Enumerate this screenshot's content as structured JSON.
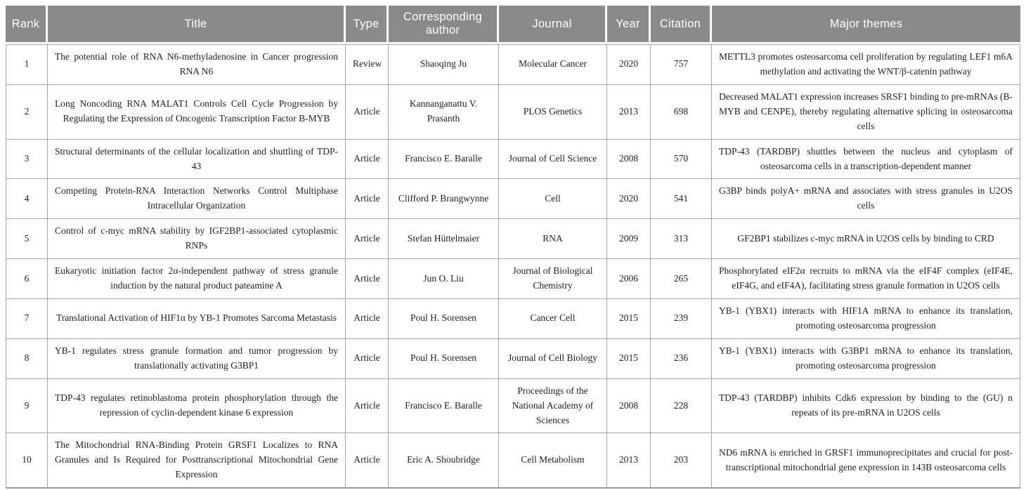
{
  "table": {
    "columns": [
      {
        "key": "rank",
        "label": "Rank"
      },
      {
        "key": "title",
        "label": "Title"
      },
      {
        "key": "type",
        "label": "Type"
      },
      {
        "key": "author",
        "label": "Corresponding author"
      },
      {
        "key": "journal",
        "label": "Journal"
      },
      {
        "key": "year",
        "label": "Year"
      },
      {
        "key": "citation",
        "label": "Citation"
      },
      {
        "key": "themes",
        "label": "Major themes"
      }
    ],
    "rows": [
      {
        "rank": "1",
        "title": "The potential role of RNA N6-methyladenosine in Cancer progression RNA N6",
        "type": "Review",
        "author": "Shaoqing Ju",
        "journal": "Molecular Cancer",
        "year": "2020",
        "citation": "757",
        "themes": "METTL3 promotes osteosarcoma cell proliferation by regulating LEF1 m6A methylation and activating the WNT/β-catenin pathway"
      },
      {
        "rank": "2",
        "title": "Long Noncoding RNA MALAT1 Controls Cell Cycle Progression by Regulating the Expression of Oncogenic Transcription Factor B-MYB",
        "type": "Article",
        "author": "Kannanganattu V. Prasanth",
        "journal": "PLOS Genetics",
        "year": "2013",
        "citation": "698",
        "themes": "Decreased MALAT1 expression increases SRSF1 binding to pre-mRNAs (B-MYB and CENPE), thereby regulating alternative splicing in osteosarcoma cells"
      },
      {
        "rank": "3",
        "title": "Structural determinants of the cellular localization and shuttling of TDP-43",
        "type": "Article",
        "author": "Francisco E. Baralle",
        "journal": "Journal of Cell Science",
        "year": "2008",
        "citation": "570",
        "themes": "TDP-43 (TARDBP) shuttles between the nucleus and cytoplasm of osteosarcoma cells in a transcription-dependent manner"
      },
      {
        "rank": "4",
        "title": "Competing Protein-RNA Interaction Networks Control Multiphase Intracellular Organization",
        "type": "Article",
        "author": "Clifford P. Brangwynne",
        "journal": "Cell",
        "year": "2020",
        "citation": "541",
        "themes": "G3BP binds polyA+ mRNA and associates with stress granules in U2OS cells"
      },
      {
        "rank": "5",
        "title": "Control of c-myc mRNA stability by IGF2BP1-associated cytoplasmic RNPs",
        "type": "Article",
        "author": "Stefan Hüttelmaier",
        "journal": "RNA",
        "year": "2009",
        "citation": "313",
        "themes": "GF2BP1 stabilizes c-myc mRNA in U2OS cells by binding to CRD"
      },
      {
        "rank": "6",
        "title": "Eukaryotic initiation factor 2α-independent pathway of stress granule induction by the natural product pateamine A",
        "type": "Article",
        "author": "Jun O. Liu",
        "journal": "Journal of Biological Chemistry",
        "year": "2006",
        "citation": "265",
        "themes": "Phosphorylated eIF2α recruits to mRNA via the eIF4F complex (eIF4E, eIF4G, and eIF4A), facilitating stress granule formation in U2OS cells"
      },
      {
        "rank": "7",
        "title": "Translational Activation of HIF1α by YB-1 Promotes Sarcoma Metastasis",
        "type": "Article",
        "author": "Poul H. Sorensen",
        "journal": "Cancer Cell",
        "year": "2015",
        "citation": "239",
        "themes": "YB-1 (YBX1) interacts with HIF1A mRNA to enhance its translation, promoting osteosarcoma progression"
      },
      {
        "rank": "8",
        "title": "YB-1 regulates stress granule formation and tumor progression by translationally activating G3BP1",
        "type": "Article",
        "author": "Poul H. Sorensen",
        "journal": "Journal of Cell Biology",
        "year": "2015",
        "citation": "236",
        "themes": "YB-1 (YBX1) interacts with G3BP1 mRNA to enhance its translation, promoting osteosarcoma progression"
      },
      {
        "rank": "9",
        "title": "TDP-43 regulates retinoblastoma protein phosphorylation through the repression of cyclin-dependent kinase 6 expression",
        "type": "Article",
        "author": "Francisco E. Baralle",
        "journal": "Proceedings of the National Academy of Sciences",
        "year": "2008",
        "citation": "228",
        "themes": "TDP-43 (TARDBP) inhibits Cdk6 expression by binding to the (GU) n repeats of its pre-mRNA in U2OS cells"
      },
      {
        "rank": "10",
        "title": "The Mitochondrial RNA-Binding Protein GRSF1 Localizes to RNA Granules and Is Required for Posttranscriptional Mitochondrial Gene Expression",
        "type": "Article",
        "author": "Eric A. Shoubridge",
        "journal": "Cell Metabolism",
        "year": "2013",
        "citation": "203",
        "themes": "ND6 mRNA is enriched in GRSF1 immunoprecipitates and crucial for post-transcriptional mitochondrial gene expression in 143B osteosarcoma cells"
      }
    ]
  },
  "colors": {
    "header_bg": "#8a8a8a",
    "header_text": "#ffffff",
    "body_text": "#1f1f1f",
    "grid_line": "#a6a6a6"
  }
}
